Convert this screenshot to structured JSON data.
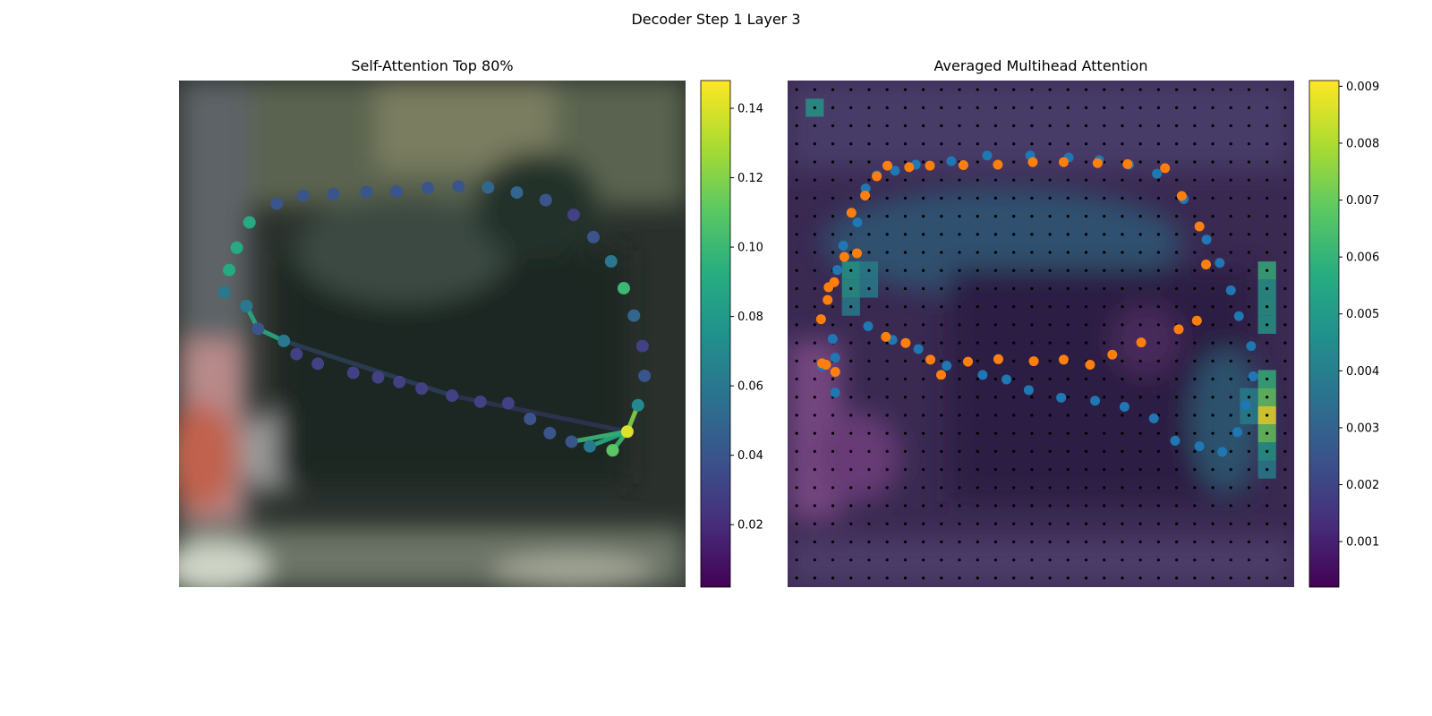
{
  "figure_title": "Decoder Step 1 Layer 3",
  "chart_data": [
    {
      "type": "scatter",
      "title": "Self-Attention Top 80%",
      "xlim": [
        0,
        1
      ],
      "ylim": [
        0,
        1
      ],
      "colorbar": {
        "cmap": "viridis",
        "range": [
          0.002,
          0.148
        ],
        "ticks": [
          0.02,
          0.04,
          0.06,
          0.08,
          0.1,
          0.12,
          0.14
        ],
        "tick_labels": [
          "0.02",
          "0.04",
          "0.06",
          "0.08",
          "0.10",
          "0.12",
          "0.14"
        ]
      },
      "points": [
        {
          "x": 0.139,
          "y": 0.72,
          "v": 0.09
        },
        {
          "x": 0.114,
          "y": 0.67,
          "v": 0.09
        },
        {
          "x": 0.099,
          "y": 0.626,
          "v": 0.09
        },
        {
          "x": 0.089,
          "y": 0.582,
          "v": 0.06
        },
        {
          "x": 0.133,
          "y": 0.555,
          "v": 0.06
        },
        {
          "x": 0.156,
          "y": 0.51,
          "v": 0.04
        },
        {
          "x": 0.207,
          "y": 0.486,
          "v": 0.06
        },
        {
          "x": 0.232,
          "y": 0.46,
          "v": 0.03
        },
        {
          "x": 0.274,
          "y": 0.441,
          "v": 0.03
        },
        {
          "x": 0.344,
          "y": 0.423,
          "v": 0.03
        },
        {
          "x": 0.393,
          "y": 0.414,
          "v": 0.03
        },
        {
          "x": 0.435,
          "y": 0.405,
          "v": 0.03
        },
        {
          "x": 0.479,
          "y": 0.392,
          "v": 0.03
        },
        {
          "x": 0.539,
          "y": 0.378,
          "v": 0.03
        },
        {
          "x": 0.595,
          "y": 0.366,
          "v": 0.03
        },
        {
          "x": 0.65,
          "y": 0.363,
          "v": 0.03
        },
        {
          "x": 0.693,
          "y": 0.332,
          "v": 0.04
        },
        {
          "x": 0.732,
          "y": 0.304,
          "v": 0.04
        },
        {
          "x": 0.775,
          "y": 0.287,
          "v": 0.04
        },
        {
          "x": 0.811,
          "y": 0.278,
          "v": 0.06
        },
        {
          "x": 0.856,
          "y": 0.27,
          "v": 0.11
        },
        {
          "x": 0.885,
          "y": 0.307,
          "v": 0.14
        },
        {
          "x": 0.906,
          "y": 0.359,
          "v": 0.07
        },
        {
          "x": 0.919,
          "y": 0.417,
          "v": 0.04
        },
        {
          "x": 0.915,
          "y": 0.476,
          "v": 0.03
        },
        {
          "x": 0.898,
          "y": 0.536,
          "v": 0.05
        },
        {
          "x": 0.878,
          "y": 0.59,
          "v": 0.1
        },
        {
          "x": 0.853,
          "y": 0.643,
          "v": 0.06
        },
        {
          "x": 0.818,
          "y": 0.691,
          "v": 0.04
        },
        {
          "x": 0.779,
          "y": 0.735,
          "v": 0.03
        },
        {
          "x": 0.724,
          "y": 0.764,
          "v": 0.04
        },
        {
          "x": 0.667,
          "y": 0.779,
          "v": 0.05
        },
        {
          "x": 0.61,
          "y": 0.789,
          "v": 0.05
        },
        {
          "x": 0.552,
          "y": 0.791,
          "v": 0.04
        },
        {
          "x": 0.491,
          "y": 0.788,
          "v": 0.04
        },
        {
          "x": 0.429,
          "y": 0.781,
          "v": 0.04
        },
        {
          "x": 0.37,
          "y": 0.78,
          "v": 0.04
        },
        {
          "x": 0.305,
          "y": 0.776,
          "v": 0.04
        },
        {
          "x": 0.245,
          "y": 0.773,
          "v": 0.04
        },
        {
          "x": 0.193,
          "y": 0.757,
          "v": 0.04
        }
      ],
      "links": [
        {
          "from": 5,
          "to": 4,
          "v": 0.09
        },
        {
          "from": 5,
          "to": 6,
          "v": 0.09
        },
        {
          "from": 6,
          "to": 13,
          "v": 0.04
        },
        {
          "from": 13,
          "to": 21,
          "v": 0.03
        },
        {
          "from": 21,
          "to": 22,
          "v": 0.12
        },
        {
          "from": 21,
          "to": 18,
          "v": 0.1
        },
        {
          "from": 21,
          "to": 19,
          "v": 0.09
        },
        {
          "from": 21,
          "to": 20,
          "v": 0.1
        }
      ]
    },
    {
      "type": "heatmap",
      "title": "Averaged Multihead Attention",
      "xlim": [
        0,
        1
      ],
      "ylim": [
        0,
        1
      ],
      "grid": [
        28,
        28
      ],
      "colorbar": {
        "cmap": "viridis",
        "range": [
          0.0002,
          0.0091
        ],
        "ticks": [
          0.001,
          0.002,
          0.003,
          0.004,
          0.005,
          0.006,
          0.007,
          0.008,
          0.009
        ],
        "tick_labels": [
          "0.001",
          "0.002",
          "0.003",
          "0.004",
          "0.005",
          "0.006",
          "0.007",
          "0.008",
          "0.009"
        ]
      },
      "hot_cells": [
        {
          "col": 1,
          "row": 1,
          "v": 0.005
        },
        {
          "col": 3,
          "row": 10,
          "v": 0.005
        },
        {
          "col": 3,
          "row": 11,
          "v": 0.005
        },
        {
          "col": 3,
          "row": 12,
          "v": 0.004
        },
        {
          "col": 4,
          "row": 10,
          "v": 0.004
        },
        {
          "col": 4,
          "row": 11,
          "v": 0.004
        },
        {
          "col": 26,
          "row": 10,
          "v": 0.006
        },
        {
          "col": 26,
          "row": 11,
          "v": 0.005
        },
        {
          "col": 26,
          "row": 12,
          "v": 0.005
        },
        {
          "col": 26,
          "row": 13,
          "v": 0.005
        },
        {
          "col": 26,
          "row": 16,
          "v": 0.006
        },
        {
          "col": 26,
          "row": 17,
          "v": 0.007
        },
        {
          "col": 26,
          "row": 18,
          "v": 0.009
        },
        {
          "col": 26,
          "row": 19,
          "v": 0.007
        },
        {
          "col": 26,
          "row": 20,
          "v": 0.005
        },
        {
          "col": 26,
          "row": 21,
          "v": 0.004
        },
        {
          "col": 25,
          "row": 17,
          "v": 0.004
        },
        {
          "col": 25,
          "row": 18,
          "v": 0.004
        }
      ],
      "series": [
        {
          "name": "",
          "color": "#1f77b4",
          "points": [
            {
              "x": 0.068,
              "y": 0.436
            },
            {
              "x": 0.094,
              "y": 0.384
            },
            {
              "x": 0.094,
              "y": 0.453
            },
            {
              "x": 0.089,
              "y": 0.49
            },
            {
              "x": 0.098,
              "y": 0.626
            },
            {
              "x": 0.11,
              "y": 0.674
            },
            {
              "x": 0.138,
              "y": 0.72
            },
            {
              "x": 0.154,
              "y": 0.787
            },
            {
              "x": 0.176,
              "y": 0.813
            },
            {
              "x": 0.212,
              "y": 0.822
            },
            {
              "x": 0.253,
              "y": 0.834
            },
            {
              "x": 0.323,
              "y": 0.841
            },
            {
              "x": 0.394,
              "y": 0.852
            },
            {
              "x": 0.479,
              "y": 0.852
            },
            {
              "x": 0.555,
              "y": 0.848
            },
            {
              "x": 0.615,
              "y": 0.843
            },
            {
              "x": 0.674,
              "y": 0.834
            },
            {
              "x": 0.729,
              "y": 0.816
            },
            {
              "x": 0.782,
              "y": 0.766
            },
            {
              "x": 0.827,
              "y": 0.686
            },
            {
              "x": 0.853,
              "y": 0.64
            },
            {
              "x": 0.875,
              "y": 0.586
            },
            {
              "x": 0.891,
              "y": 0.535
            },
            {
              "x": 0.915,
              "y": 0.476
            },
            {
              "x": 0.919,
              "y": 0.416
            },
            {
              "x": 0.904,
              "y": 0.359
            },
            {
              "x": 0.888,
              "y": 0.306
            },
            {
              "x": 0.858,
              "y": 0.267
            },
            {
              "x": 0.813,
              "y": 0.278
            },
            {
              "x": 0.765,
              "y": 0.289
            },
            {
              "x": 0.723,
              "y": 0.333
            },
            {
              "x": 0.665,
              "y": 0.356
            },
            {
              "x": 0.607,
              "y": 0.368
            },
            {
              "x": 0.54,
              "y": 0.374
            },
            {
              "x": 0.476,
              "y": 0.389
            },
            {
              "x": 0.432,
              "y": 0.41
            },
            {
              "x": 0.385,
              "y": 0.419
            },
            {
              "x": 0.314,
              "y": 0.437
            },
            {
              "x": 0.258,
              "y": 0.47
            },
            {
              "x": 0.207,
              "y": 0.488
            },
            {
              "x": 0.159,
              "y": 0.515
            }
          ]
        },
        {
          "name": "",
          "color": "#ff7f0e",
          "points": [
            {
              "x": 0.076,
              "y": 0.439
            },
            {
              "x": 0.081,
              "y": 0.592
            },
            {
              "x": 0.112,
              "y": 0.652
            },
            {
              "x": 0.137,
              "y": 0.659
            },
            {
              "x": 0.126,
              "y": 0.739
            },
            {
              "x": 0.153,
              "y": 0.773
            },
            {
              "x": 0.176,
              "y": 0.811
            },
            {
              "x": 0.197,
              "y": 0.832
            },
            {
              "x": 0.24,
              "y": 0.829
            },
            {
              "x": 0.281,
              "y": 0.832
            },
            {
              "x": 0.347,
              "y": 0.833
            },
            {
              "x": 0.415,
              "y": 0.834
            },
            {
              "x": 0.484,
              "y": 0.839
            },
            {
              "x": 0.545,
              "y": 0.839
            },
            {
              "x": 0.612,
              "y": 0.837
            },
            {
              "x": 0.671,
              "y": 0.835
            },
            {
              "x": 0.745,
              "y": 0.827
            },
            {
              "x": 0.778,
              "y": 0.772
            },
            {
              "x": 0.813,
              "y": 0.712
            },
            {
              "x": 0.826,
              "y": 0.637
            },
            {
              "x": 0.808,
              "y": 0.526
            },
            {
              "x": 0.772,
              "y": 0.509
            },
            {
              "x": 0.698,
              "y": 0.483
            },
            {
              "x": 0.641,
              "y": 0.459
            },
            {
              "x": 0.597,
              "y": 0.439
            },
            {
              "x": 0.545,
              "y": 0.449
            },
            {
              "x": 0.486,
              "y": 0.446
            },
            {
              "x": 0.416,
              "y": 0.45
            },
            {
              "x": 0.356,
              "y": 0.445
            },
            {
              "x": 0.303,
              "y": 0.419
            },
            {
              "x": 0.282,
              "y": 0.449
            },
            {
              "x": 0.233,
              "y": 0.482
            },
            {
              "x": 0.194,
              "y": 0.494
            },
            {
              "x": 0.094,
              "y": 0.425
            },
            {
              "x": 0.068,
              "y": 0.442
            },
            {
              "x": 0.066,
              "y": 0.529
            },
            {
              "x": 0.079,
              "y": 0.567
            },
            {
              "x": 0.092,
              "y": 0.602
            }
          ]
        }
      ]
    }
  ]
}
